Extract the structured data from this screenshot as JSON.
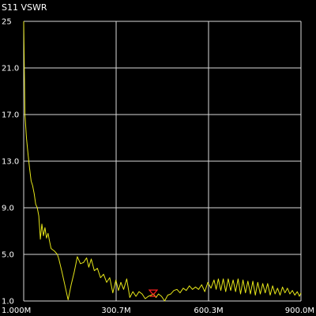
{
  "title": "S11 VSWR",
  "colors": {
    "background": "#000000",
    "grid": "#d9d9d9",
    "trace": "#e6e619",
    "marker": "#ff2020",
    "text": "#ffffff"
  },
  "chart_data": {
    "type": "line",
    "title": "S11 VSWR",
    "xlabel": "",
    "ylabel": "",
    "xlim": [
      1.0,
      900.0
    ],
    "ylim": [
      1.0,
      25.0
    ],
    "x_ticks": [
      "1.000M",
      "300.7M",
      "600.3M",
      "900.0M"
    ],
    "y_ticks": [
      "25",
      "21.0",
      "17.0",
      "13.0",
      "9.0",
      "5.0",
      "1.0"
    ],
    "grid": true,
    "marker_x": 421,
    "series": [
      {
        "values": [
          [
            1,
            25.0
          ],
          [
            5,
            17.0
          ],
          [
            10,
            15.0
          ],
          [
            15,
            13.6
          ],
          [
            20,
            12.4
          ],
          [
            25,
            11.3
          ],
          [
            30,
            10.9
          ],
          [
            35,
            10.2
          ],
          [
            40,
            9.3
          ],
          [
            45,
            9.0
          ],
          [
            50,
            8.3
          ],
          [
            55,
            6.3
          ],
          [
            60,
            7.6
          ],
          [
            65,
            6.6
          ],
          [
            70,
            7.3
          ],
          [
            75,
            6.4
          ],
          [
            80,
            6.8
          ],
          [
            85,
            6.1
          ],
          [
            90,
            5.5
          ],
          [
            100,
            5.3
          ],
          [
            110,
            5.0
          ],
          [
            115,
            4.6
          ],
          [
            125,
            3.5
          ],
          [
            135,
            2.3
          ],
          [
            145,
            1.1
          ],
          [
            155,
            2.4
          ],
          [
            165,
            3.5
          ],
          [
            175,
            4.8
          ],
          [
            185,
            4.2
          ],
          [
            195,
            4.3
          ],
          [
            205,
            4.7
          ],
          [
            212,
            3.9
          ],
          [
            220,
            4.6
          ],
          [
            230,
            3.6
          ],
          [
            240,
            3.8
          ],
          [
            250,
            3.0
          ],
          [
            260,
            3.3
          ],
          [
            270,
            2.6
          ],
          [
            280,
            3.0
          ],
          [
            290,
            1.7
          ],
          [
            300,
            2.8
          ],
          [
            308,
            1.9
          ],
          [
            316,
            2.6
          ],
          [
            325,
            2.0
          ],
          [
            335,
            2.9
          ],
          [
            345,
            1.3
          ],
          [
            355,
            1.8
          ],
          [
            365,
            1.4
          ],
          [
            375,
            1.8
          ],
          [
            385,
            1.6
          ],
          [
            395,
            1.2
          ],
          [
            405,
            1.4
          ],
          [
            415,
            1.5
          ],
          [
            421,
            1.6
          ],
          [
            430,
            1.3
          ],
          [
            438,
            1.6
          ],
          [
            448,
            1.4
          ],
          [
            458,
            1.0
          ],
          [
            468,
            1.5
          ],
          [
            478,
            1.6
          ],
          [
            488,
            1.9
          ],
          [
            498,
            2.0
          ],
          [
            508,
            1.7
          ],
          [
            518,
            2.1
          ],
          [
            528,
            1.9
          ],
          [
            538,
            2.3
          ],
          [
            548,
            2.0
          ],
          [
            558,
            2.2
          ],
          [
            568,
            2.0
          ],
          [
            578,
            2.4
          ],
          [
            588,
            1.8
          ],
          [
            598,
            2.6
          ],
          [
            608,
            2.1
          ],
          [
            618,
            2.8
          ],
          [
            625,
            2.0
          ],
          [
            632,
            2.9
          ],
          [
            640,
            1.9
          ],
          [
            648,
            2.9
          ],
          [
            656,
            1.8
          ],
          [
            664,
            2.9
          ],
          [
            672,
            1.9
          ],
          [
            680,
            2.8
          ],
          [
            688,
            1.8
          ],
          [
            696,
            2.9
          ],
          [
            704,
            1.6
          ],
          [
            712,
            2.8
          ],
          [
            720,
            1.7
          ],
          [
            728,
            2.7
          ],
          [
            736,
            1.6
          ],
          [
            744,
            2.7
          ],
          [
            752,
            1.5
          ],
          [
            760,
            2.6
          ],
          [
            768,
            1.6
          ],
          [
            776,
            2.5
          ],
          [
            784,
            1.7
          ],
          [
            792,
            2.5
          ],
          [
            800,
            1.5
          ],
          [
            808,
            2.3
          ],
          [
            816,
            1.6
          ],
          [
            824,
            2.1
          ],
          [
            832,
            1.5
          ],
          [
            840,
            2.2
          ],
          [
            848,
            1.7
          ],
          [
            856,
            2.1
          ],
          [
            864,
            1.6
          ],
          [
            872,
            1.9
          ],
          [
            880,
            1.5
          ],
          [
            888,
            1.8
          ],
          [
            895,
            1.4
          ],
          [
            900,
            1.7
          ]
        ]
      }
    ]
  }
}
